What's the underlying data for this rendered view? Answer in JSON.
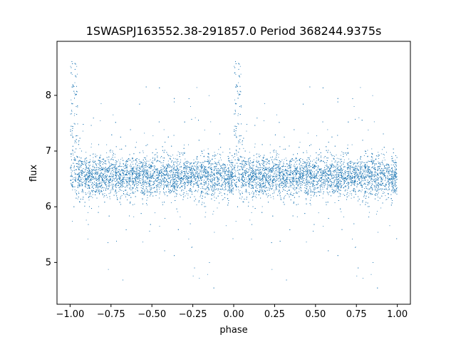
{
  "chart_data": {
    "type": "scatter",
    "title": "1SWASPJ163552.38-291857.0 Period 368244.9375s",
    "xlabel": "phase",
    "ylabel": "flux",
    "xlim": [
      -1.08,
      1.08
    ],
    "ylim": [
      4.25,
      8.97
    ],
    "xticks": [
      -1.0,
      -0.75,
      -0.5,
      -0.25,
      0.0,
      0.25,
      0.5,
      0.75,
      1.0
    ],
    "xtick_labels": [
      "−1.00",
      "−0.75",
      "−0.50",
      "−0.25",
      "0.00",
      "0.25",
      "0.50",
      "0.75",
      "1.00"
    ],
    "yticks": [
      5,
      6,
      7,
      8
    ],
    "ytick_labels": [
      "5",
      "6",
      "7",
      "8"
    ],
    "grid": false,
    "point_color": "#1f77b4",
    "baseline_flux": 6.55,
    "features": [
      {
        "phase": 0.02,
        "peak_flux": 8.75,
        "description_flux_range": [
          6.6,
          8.75
        ]
      },
      {
        "phase": -0.98,
        "peak_flux": 8.75,
        "description_flux_range": [
          6.6,
          8.75
        ]
      }
    ],
    "series": [
      {
        "name": "",
        "x": [],
        "y": []
      }
    ]
  }
}
